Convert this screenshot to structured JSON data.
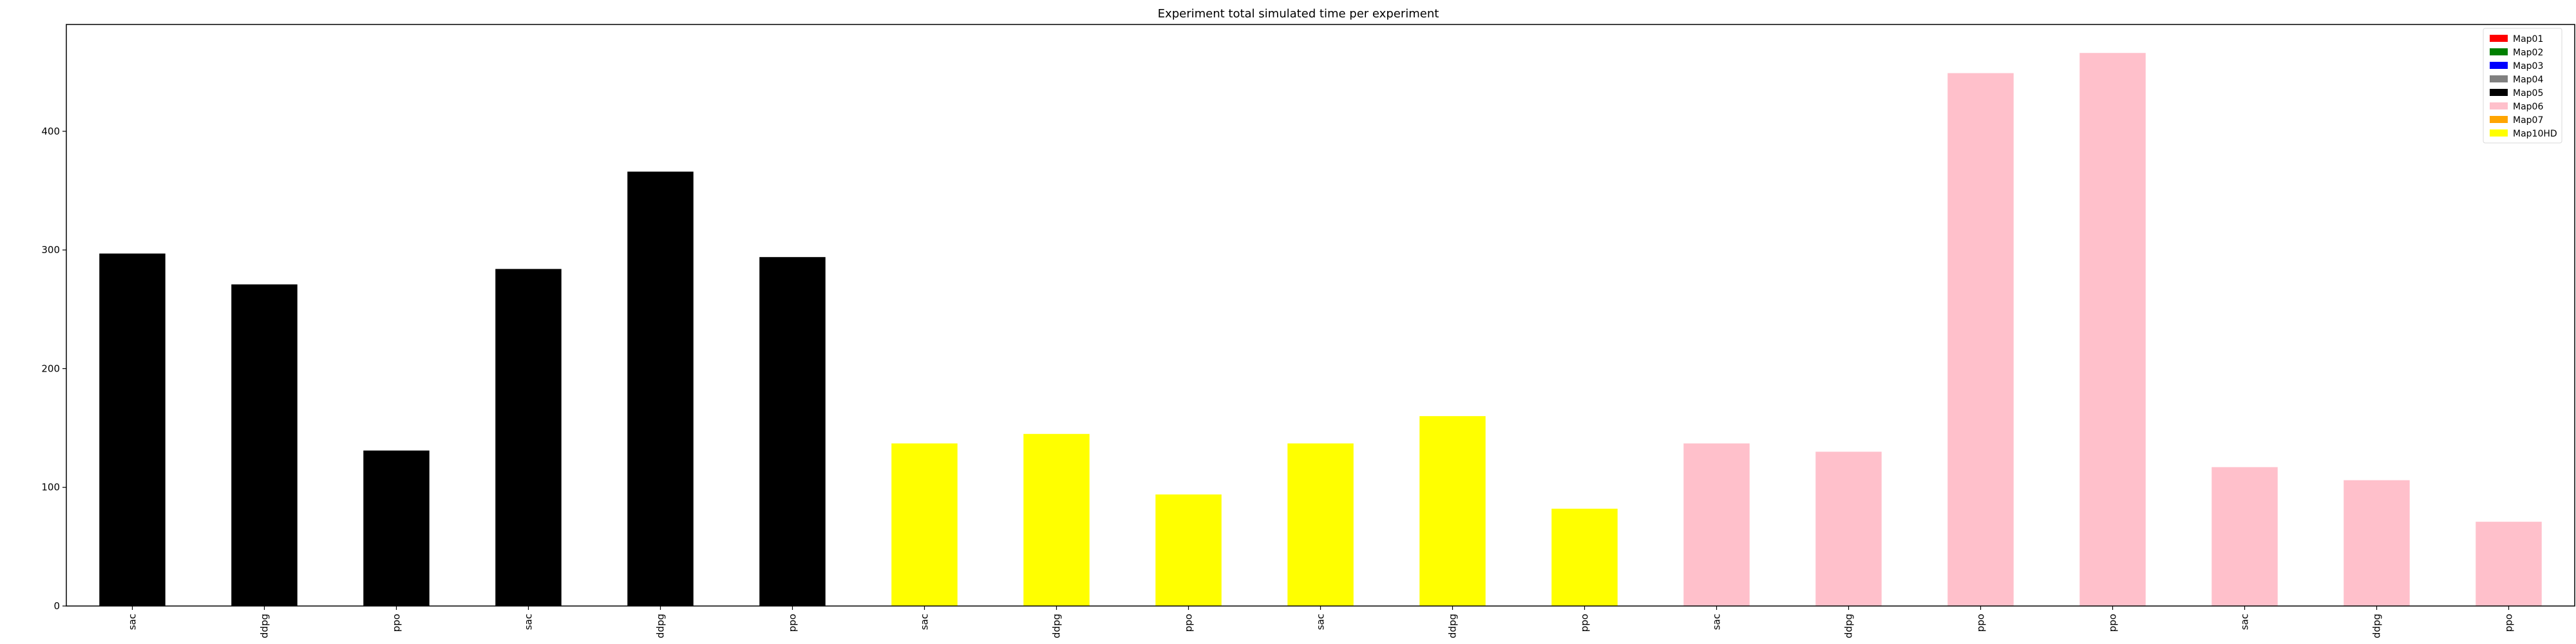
{
  "chart_data": {
    "type": "bar",
    "title": "Experiment total simulated time per experiment",
    "xlabel": "",
    "ylabel": "",
    "ylim": [
      0,
      490
    ],
    "yticks": [
      0,
      100,
      200,
      300,
      400
    ],
    "grid": false,
    "legend_position": "top-right",
    "legend": [
      {
        "label": "Map01",
        "color": "#ff0000"
      },
      {
        "label": "Map02",
        "color": "#008000"
      },
      {
        "label": "Map03",
        "color": "#0000ff"
      },
      {
        "label": "Map04",
        "color": "#808080"
      },
      {
        "label": "Map05",
        "color": "#000000"
      },
      {
        "label": "Map06",
        "color": "#ffc0cb"
      },
      {
        "label": "Map07",
        "color": "#ffa500"
      },
      {
        "label": "Map10HD",
        "color": "#ffff00"
      }
    ],
    "bars": [
      {
        "category": "sac",
        "value": 297,
        "color": "#000000"
      },
      {
        "category": "ddpg",
        "value": 271,
        "color": "#000000"
      },
      {
        "category": "ppo",
        "value": 131,
        "color": "#000000"
      },
      {
        "category": "sac",
        "value": 284,
        "color": "#000000"
      },
      {
        "category": "ddpg",
        "value": 366,
        "color": "#000000"
      },
      {
        "category": "ppo",
        "value": 294,
        "color": "#000000"
      },
      {
        "category": "sac",
        "value": 137,
        "color": "#ffff00"
      },
      {
        "category": "ddpg",
        "value": 145,
        "color": "#ffff00"
      },
      {
        "category": "ppo",
        "value": 94,
        "color": "#ffff00"
      },
      {
        "category": "sac",
        "value": 137,
        "color": "#ffff00"
      },
      {
        "category": "ddpg",
        "value": 160,
        "color": "#ffff00"
      },
      {
        "category": "ppo",
        "value": 82,
        "color": "#ffff00"
      },
      {
        "category": "sac",
        "value": 137,
        "color": "#ffc0cb"
      },
      {
        "category": "ddpg",
        "value": 130,
        "color": "#ffc0cb"
      },
      {
        "category": "ppo",
        "value": 449,
        "color": "#ffc0cb"
      },
      {
        "category": "ppo",
        "value": 466,
        "color": "#ffc0cb"
      },
      {
        "category": "sac",
        "value": 117,
        "color": "#ffc0cb"
      },
      {
        "category": "ddpg",
        "value": 106,
        "color": "#ffc0cb"
      },
      {
        "category": "ppo",
        "value": 71,
        "color": "#ffc0cb"
      }
    ]
  }
}
